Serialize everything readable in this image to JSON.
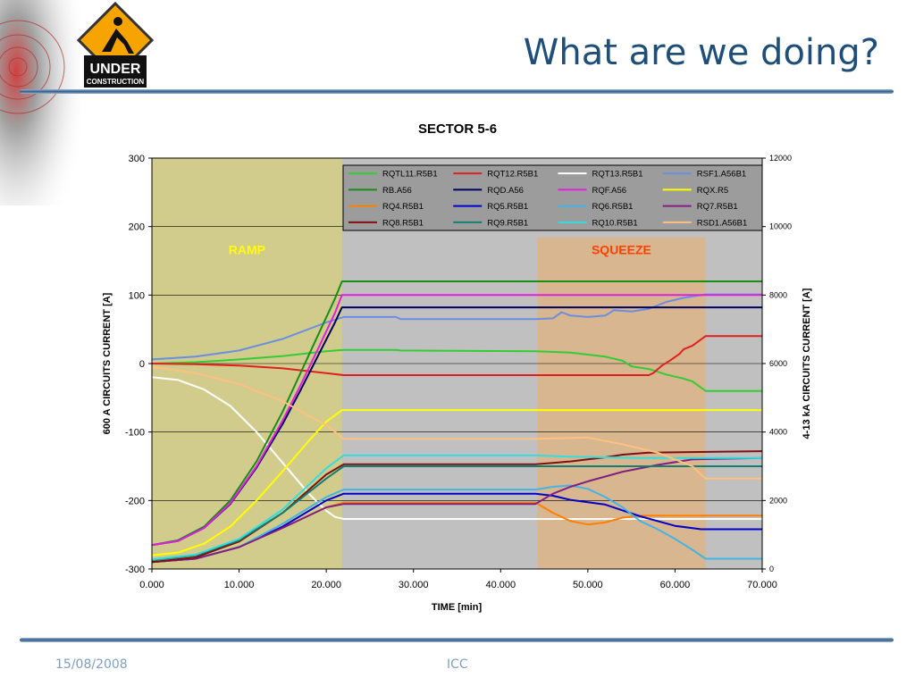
{
  "slide": {
    "title": "What are we doing?",
    "logo_text_1": "UNDER",
    "logo_text_2": "CONSTRUCTION",
    "footer_date": "15/08/2008",
    "footer_center": "ICC"
  },
  "chart_data": {
    "type": "line",
    "title": "SECTOR 5-6",
    "xlabel": "TIME [min]",
    "ylabel": "600 A CIRCUITS CURRENT [A]",
    "y2label": "4-13 kA CIRCUITS CURRENT [A]",
    "xlim": [
      0,
      70
    ],
    "ylim": [
      -300,
      300
    ],
    "y2lim": [
      0,
      12000
    ],
    "xticks": [
      "0.000",
      "10.000",
      "20.000",
      "30.000",
      "40.000",
      "50.000",
      "60.000",
      "70.000"
    ],
    "yticks": [
      "300",
      "200",
      "100",
      "0",
      "-100",
      "-200",
      "-300"
    ],
    "y2ticks": [
      "12000",
      "10000",
      "8000",
      "6000",
      "4000",
      "2000",
      "0"
    ],
    "grid": true,
    "legend_position": "top-right",
    "colors": {
      "plot_bg": "#c0c0c0",
      "ramp_bg": "#d2cc8c",
      "squeeze_bg": "#d8b690",
      "legend_bg": "#9c9c9c"
    },
    "regions": [
      {
        "label": "RAMP",
        "x_start": 0,
        "x_end": 21.8,
        "label_color": "#ffff00"
      },
      {
        "label": "SQUEEZE",
        "x_start": 44.2,
        "x_end": 63.5,
        "label_color": "#ff4000"
      }
    ],
    "series": [
      {
        "name": "RQTL11.R5B1",
        "color": "#33cc33",
        "points": [
          [
            0,
            0
          ],
          [
            5,
            2
          ],
          [
            10,
            6
          ],
          [
            15,
            11
          ],
          [
            20,
            18
          ],
          [
            22,
            20
          ],
          [
            28,
            20
          ],
          [
            28.5,
            19
          ],
          [
            44,
            18
          ],
          [
            48,
            16
          ],
          [
            52,
            10
          ],
          [
            54,
            4
          ],
          [
            55,
            -4
          ],
          [
            57,
            -8
          ],
          [
            59,
            -16
          ],
          [
            61,
            -22
          ],
          [
            62,
            -26
          ],
          [
            63.5,
            -40
          ],
          [
            70,
            -40
          ]
        ]
      },
      {
        "name": "RQT12.R5B1",
        "color": "#e02020",
        "points": [
          [
            0,
            0
          ],
          [
            5,
            -1
          ],
          [
            10,
            -3
          ],
          [
            15,
            -7
          ],
          [
            20,
            -14
          ],
          [
            22,
            -17
          ],
          [
            44,
            -17
          ],
          [
            57,
            -17
          ],
          [
            57.5,
            -14
          ],
          [
            58.5,
            -3
          ],
          [
            59.5,
            5
          ],
          [
            60.5,
            14
          ],
          [
            61,
            21
          ],
          [
            62,
            26
          ],
          [
            63.5,
            40
          ],
          [
            70,
            40
          ]
        ]
      },
      {
        "name": "RQT13.R5B1",
        "color": "#ffffff",
        "points": [
          [
            0,
            -20
          ],
          [
            3,
            -24
          ],
          [
            6,
            -38
          ],
          [
            9,
            -62
          ],
          [
            12,
            -100
          ],
          [
            15,
            -145
          ],
          [
            18,
            -190
          ],
          [
            20,
            -215
          ],
          [
            21,
            -224
          ],
          [
            22,
            -227
          ],
          [
            70,
            -227
          ]
        ]
      },
      {
        "name": "RSF1.A56B1",
        "color": "#6a8ee0",
        "points": [
          [
            0,
            6
          ],
          [
            5,
            10
          ],
          [
            10,
            19
          ],
          [
            15,
            36
          ],
          [
            20,
            60
          ],
          [
            22,
            68
          ],
          [
            28,
            68
          ],
          [
            28.5,
            65
          ],
          [
            44,
            65
          ],
          [
            46,
            66
          ],
          [
            47,
            75
          ],
          [
            48,
            70
          ],
          [
            50,
            68
          ],
          [
            52,
            70
          ],
          [
            53,
            78
          ],
          [
            55,
            76
          ],
          [
            57,
            80
          ],
          [
            59,
            90
          ],
          [
            61,
            96
          ],
          [
            63.5,
            101
          ],
          [
            70,
            101
          ]
        ]
      },
      {
        "name": "RB.A56",
        "color": "#1a8c1a",
        "points": [
          [
            0,
            -265
          ],
          [
            3,
            -258
          ],
          [
            6,
            -238
          ],
          [
            9,
            -200
          ],
          [
            12,
            -143
          ],
          [
            15,
            -70
          ],
          [
            17,
            -15
          ],
          [
            19,
            40
          ],
          [
            21,
            95
          ],
          [
            21.8,
            120
          ],
          [
            70,
            120
          ]
        ]
      },
      {
        "name": "RQD.A56",
        "color": "#000060",
        "points": [
          [
            0,
            -265
          ],
          [
            3,
            -259
          ],
          [
            6,
            -240
          ],
          [
            9,
            -205
          ],
          [
            12,
            -152
          ],
          [
            15,
            -88
          ],
          [
            17,
            -40
          ],
          [
            19,
            10
          ],
          [
            21,
            60
          ],
          [
            21.8,
            82
          ],
          [
            70,
            82
          ]
        ]
      },
      {
        "name": "RQF.A56",
        "color": "#e020e0",
        "points": [
          [
            0,
            -265
          ],
          [
            3,
            -259
          ],
          [
            6,
            -240
          ],
          [
            9,
            -204
          ],
          [
            12,
            -150
          ],
          [
            15,
            -83
          ],
          [
            17,
            -33
          ],
          [
            19,
            20
          ],
          [
            21,
            74
          ],
          [
            21.8,
            100
          ],
          [
            70,
            100
          ]
        ]
      },
      {
        "name": "RQX.R5",
        "color": "#ffff00",
        "points": [
          [
            0,
            -280
          ],
          [
            3,
            -276
          ],
          [
            6,
            -263
          ],
          [
            9,
            -238
          ],
          [
            12,
            -200
          ],
          [
            15,
            -157
          ],
          [
            18,
            -113
          ],
          [
            20,
            -85
          ],
          [
            21.8,
            -68
          ],
          [
            70,
            -68
          ]
        ]
      },
      {
        "name": "RQ4.R5B1",
        "color": "#ff7f00",
        "points": [
          [
            0,
            -290
          ],
          [
            5,
            -285
          ],
          [
            10,
            -268
          ],
          [
            15,
            -240
          ],
          [
            20,
            -210
          ],
          [
            22,
            -203
          ],
          [
            44,
            -203
          ],
          [
            46,
            -218
          ],
          [
            48,
            -230
          ],
          [
            50,
            -235
          ],
          [
            52,
            -232
          ],
          [
            54,
            -225
          ],
          [
            56,
            -222
          ],
          [
            70,
            -222
          ]
        ]
      },
      {
        "name": "RQ5.R5B1",
        "color": "#0000cc",
        "points": [
          [
            0,
            -290
          ],
          [
            5,
            -285
          ],
          [
            10,
            -268
          ],
          [
            15,
            -238
          ],
          [
            20,
            -200
          ],
          [
            22,
            -190
          ],
          [
            44,
            -190
          ],
          [
            46,
            -193
          ],
          [
            48,
            -199
          ],
          [
            52,
            -206
          ],
          [
            56,
            -223
          ],
          [
            60,
            -237
          ],
          [
            63,
            -242
          ],
          [
            70,
            -242
          ]
        ]
      },
      {
        "name": "RQ6.R5B1",
        "color": "#44b4e4",
        "points": [
          [
            0,
            -290
          ],
          [
            5,
            -285
          ],
          [
            10,
            -268
          ],
          [
            15,
            -234
          ],
          [
            20,
            -195
          ],
          [
            22,
            -184
          ],
          [
            44,
            -184
          ],
          [
            46,
            -180
          ],
          [
            48,
            -178
          ],
          [
            50,
            -183
          ],
          [
            52,
            -195
          ],
          [
            54,
            -210
          ],
          [
            56,
            -230
          ],
          [
            58,
            -242
          ],
          [
            60,
            -256
          ],
          [
            62,
            -272
          ],
          [
            63.5,
            -285
          ],
          [
            70,
            -285
          ]
        ]
      },
      {
        "name": "RQ7.R5B1",
        "color": "#802080",
        "points": [
          [
            0,
            -290
          ],
          [
            5,
            -285
          ],
          [
            10,
            -268
          ],
          [
            15,
            -240
          ],
          [
            20,
            -210
          ],
          [
            22,
            -205
          ],
          [
            44,
            -205
          ],
          [
            46,
            -190
          ],
          [
            48,
            -180
          ],
          [
            50,
            -172
          ],
          [
            54,
            -158
          ],
          [
            58,
            -148
          ],
          [
            62,
            -140
          ],
          [
            70,
            -138
          ]
        ]
      },
      {
        "name": "RQ8.R5B1",
        "color": "#801010",
        "points": [
          [
            0,
            -290
          ],
          [
            5,
            -283
          ],
          [
            10,
            -260
          ],
          [
            15,
            -218
          ],
          [
            20,
            -162
          ],
          [
            22,
            -147
          ],
          [
            44,
            -147
          ],
          [
            46,
            -145
          ],
          [
            48,
            -143
          ],
          [
            50,
            -140
          ],
          [
            52,
            -137
          ],
          [
            54,
            -133
          ],
          [
            57,
            -130
          ],
          [
            70,
            -128
          ]
        ]
      },
      {
        "name": "RQ9.R5B1",
        "color": "#108070",
        "points": [
          [
            0,
            -287
          ],
          [
            5,
            -280
          ],
          [
            10,
            -258
          ],
          [
            15,
            -218
          ],
          [
            20,
            -168
          ],
          [
            22,
            -150
          ],
          [
            70,
            -150
          ]
        ]
      },
      {
        "name": "RQ10.R5B1",
        "color": "#33dddd",
        "points": [
          [
            0,
            -286
          ],
          [
            5,
            -279
          ],
          [
            10,
            -256
          ],
          [
            15,
            -213
          ],
          [
            20,
            -153
          ],
          [
            22,
            -134
          ],
          [
            44,
            -134
          ],
          [
            48,
            -136
          ],
          [
            52,
            -137
          ],
          [
            56,
            -138
          ],
          [
            70,
            -138
          ]
        ]
      },
      {
        "name": "RSD1.A56B1",
        "color": "#ffc080",
        "points": [
          [
            0,
            -5
          ],
          [
            5,
            -14
          ],
          [
            10,
            -30
          ],
          [
            15,
            -55
          ],
          [
            20,
            -90
          ],
          [
            22,
            -110
          ],
          [
            44,
            -110
          ],
          [
            50,
            -108
          ],
          [
            54,
            -118
          ],
          [
            58,
            -130
          ],
          [
            62,
            -150
          ],
          [
            63.5,
            -168
          ],
          [
            70,
            -168
          ]
        ]
      }
    ]
  }
}
